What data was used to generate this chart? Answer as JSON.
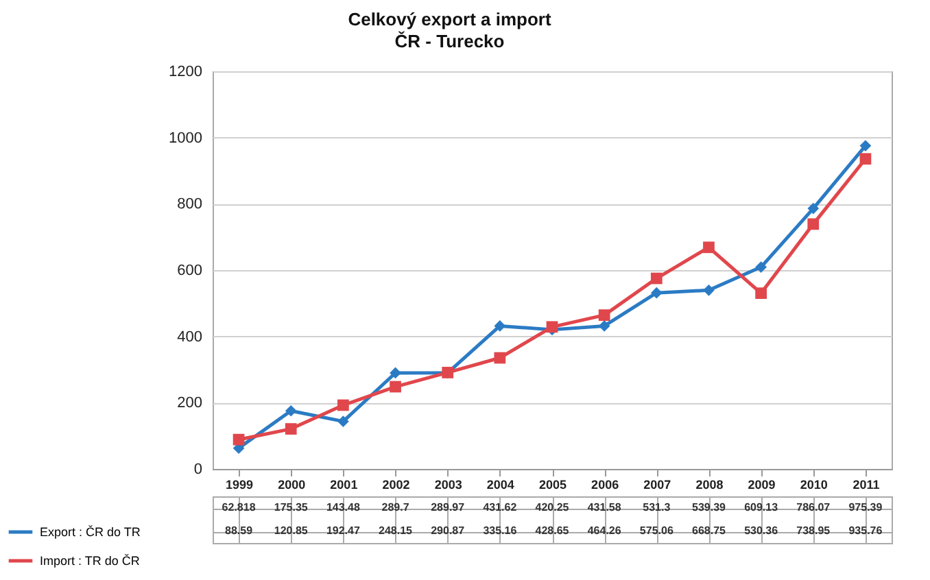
{
  "chart_data": {
    "type": "line",
    "title": "Celkový export a import",
    "subtitle": "ČR - Turecko",
    "categories": [
      "1999",
      "2000",
      "2001",
      "2002",
      "2003",
      "2004",
      "2005",
      "2006",
      "2007",
      "2008",
      "2009",
      "2010",
      "2011"
    ],
    "series": [
      {
        "name": "Export : ČR do TR",
        "color": "#2b7bc4",
        "marker": "diamond",
        "values": [
          62.818,
          175.35,
          143.48,
          289.7,
          289.97,
          431.62,
          420.25,
          431.58,
          531.3,
          539.39,
          609.13,
          786.07,
          975.39
        ],
        "value_labels": [
          "62.818",
          "175.35",
          "143.48",
          "289.7",
          "289.97",
          "431.62",
          "420.25",
          "431.58",
          "531.3",
          "539.39",
          "609.13",
          "786.07",
          "975.39"
        ]
      },
      {
        "name": "Import : TR do ČR",
        "color": "#e0474c",
        "marker": "square",
        "values": [
          88.59,
          120.85,
          192.47,
          248.15,
          290.87,
          335.16,
          428.65,
          464.26,
          575.06,
          668.75,
          530.36,
          738.95,
          935.76
        ],
        "value_labels": [
          "88.59",
          "120.85",
          "192.47",
          "248.15",
          "290.87",
          "335.16",
          "428.65",
          "464.26",
          "575.06",
          "668.75",
          "530.36",
          "738.95",
          "935.76"
        ]
      }
    ],
    "ylim": [
      0,
      1200
    ],
    "yticks": [
      0,
      200,
      400,
      600,
      800,
      1000,
      1200
    ],
    "grid": "y",
    "legend": "bottom left"
  }
}
